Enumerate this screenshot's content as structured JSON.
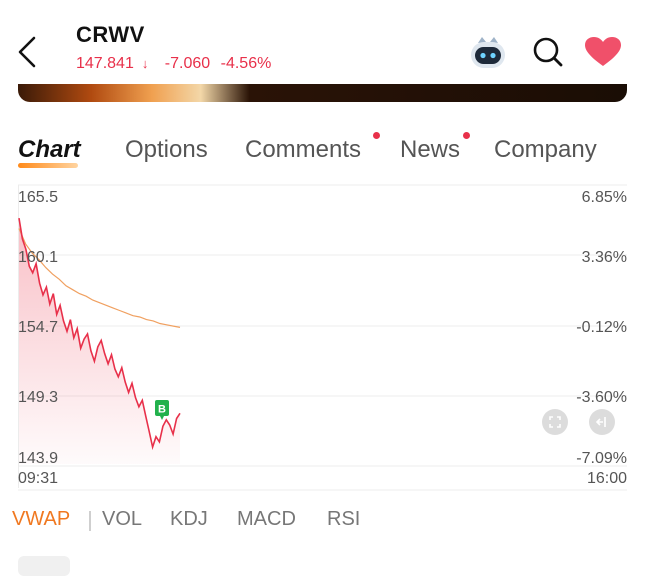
{
  "header": {
    "ticker": "CRWV",
    "price": "147.841",
    "change": "-7.060",
    "change_pct": "-4.56%",
    "colors": {
      "down": "#e8304a",
      "heart": "#f0506a"
    },
    "icons": [
      "back-arrow-icon",
      "robot-assistant-icon",
      "search-icon",
      "heart-icon"
    ]
  },
  "tabs": [
    {
      "label": "Chart",
      "active": true,
      "dot": false
    },
    {
      "label": "Options",
      "active": false,
      "dot": false
    },
    {
      "label": "Comments",
      "active": false,
      "dot": true
    },
    {
      "label": "News",
      "active": false,
      "dot": true
    },
    {
      "label": "Company",
      "active": false,
      "dot": false
    }
  ],
  "chart": {
    "left_axis": [
      "165.5",
      "160.1",
      "154.7",
      "149.3",
      "143.9"
    ],
    "right_axis": [
      "6.85%",
      "3.36%",
      "-0.12%",
      "-3.60%",
      "-7.09%"
    ],
    "time_start": "09:31",
    "time_end": "16:00",
    "buy_marker": "B",
    "colors": {
      "price": "#e8304a",
      "vwap": "#f0a060",
      "grid": "#ececec",
      "buy": "#22b14c"
    }
  },
  "chart_data": {
    "type": "line",
    "title": "",
    "xlabel": "",
    "ylabel": "",
    "ylim": [
      143.9,
      165.5
    ],
    "x_range": [
      "09:31",
      "16:00"
    ],
    "series": [
      {
        "values": [
          162.8,
          161.2,
          160.4,
          159.1,
          158.6,
          159.3,
          157.8,
          156.9,
          157.5,
          156.2,
          157.0,
          155.4,
          156.1,
          154.9,
          154.1,
          155.0,
          153.6,
          154.3,
          152.8,
          153.5,
          153.9,
          152.6,
          151.8,
          152.9,
          153.4,
          152.4,
          151.6,
          152.3,
          151.2,
          150.6,
          151.3,
          150.2,
          149.4,
          150.1,
          149.0,
          148.3,
          148.8,
          147.6,
          146.4,
          145.2,
          146.0,
          145.6,
          146.8,
          147.3,
          146.9,
          146.2,
          147.4,
          147.8
        ]
      },
      {
        "values": [
          162.0,
          160.8,
          160.1,
          159.6,
          159.0,
          158.5,
          158.1,
          157.6,
          157.3,
          157.0,
          156.8,
          156.5,
          156.3,
          156.1,
          155.9,
          155.7,
          155.5,
          155.3,
          155.2,
          155.0,
          154.9,
          154.7,
          154.6,
          154.5,
          154.4
        ]
      }
    ]
  },
  "indicators": [
    {
      "label": "VWAP",
      "active": true
    },
    {
      "label": "VOL",
      "active": false
    },
    {
      "label": "KDJ",
      "active": false
    },
    {
      "label": "MACD",
      "active": false
    },
    {
      "label": "RSI",
      "active": false
    }
  ]
}
